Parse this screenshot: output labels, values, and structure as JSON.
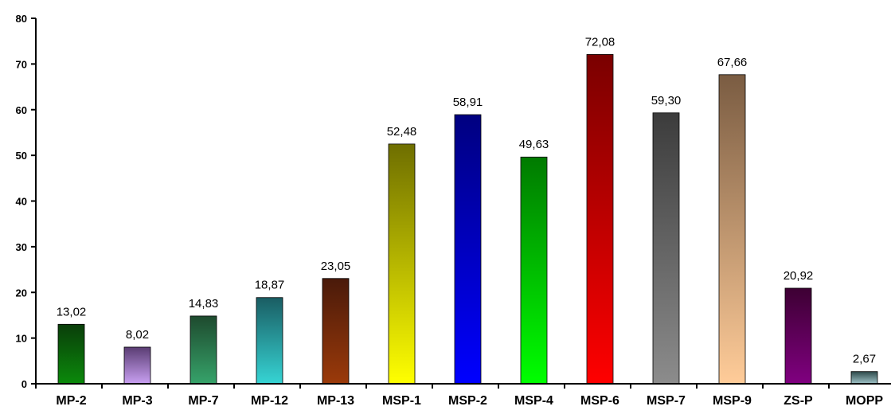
{
  "chart_data": {
    "type": "bar",
    "title": "",
    "xlabel": "",
    "ylabel": "",
    "ylim": [
      0,
      80
    ],
    "yticks": [
      0,
      10,
      20,
      30,
      40,
      50,
      60,
      70,
      80
    ],
    "grid": false,
    "legend": false,
    "categories": [
      "MP-2",
      "MP-3",
      "MP-7",
      "MP-12",
      "MP-13",
      "MSP-1",
      "MSP-2",
      "MSP-4",
      "MSP-6",
      "MSP-7",
      "MSP-9",
      "ZS-P",
      "MOPP"
    ],
    "values": [
      13.02,
      8.02,
      14.83,
      18.87,
      23.05,
      52.48,
      58.91,
      49.63,
      72.08,
      59.3,
      67.66,
      20.92,
      2.67
    ],
    "value_labels": [
      "13,02",
      "8,02",
      "14,83",
      "18,87",
      "23,05",
      "52,48",
      "58,91",
      "49,63",
      "72,08",
      "59,30",
      "67,66",
      "20,92",
      "2,67"
    ],
    "bar_gradients": [
      [
        "#0a3d0a",
        "#0b8a0b"
      ],
      [
        "#5a3d73",
        "#c9a0f2"
      ],
      [
        "#1e4a2e",
        "#36a36a"
      ],
      [
        "#1a5d63",
        "#36d4d4"
      ],
      [
        "#4a1a0a",
        "#9b3a0a"
      ],
      [
        "#6e6e00",
        "#ffff00"
      ],
      [
        "#000080",
        "#0000ff"
      ],
      [
        "#007a00",
        "#00ff00"
      ],
      [
        "#7a0000",
        "#ff0000"
      ],
      [
        "#3c3c3c",
        "#8c8c8c"
      ],
      [
        "#7a5c42",
        "#ffcc99"
      ],
      [
        "#3d0033",
        "#800080"
      ],
      [
        "#2e4a4a",
        "#a0c4c8"
      ]
    ]
  }
}
